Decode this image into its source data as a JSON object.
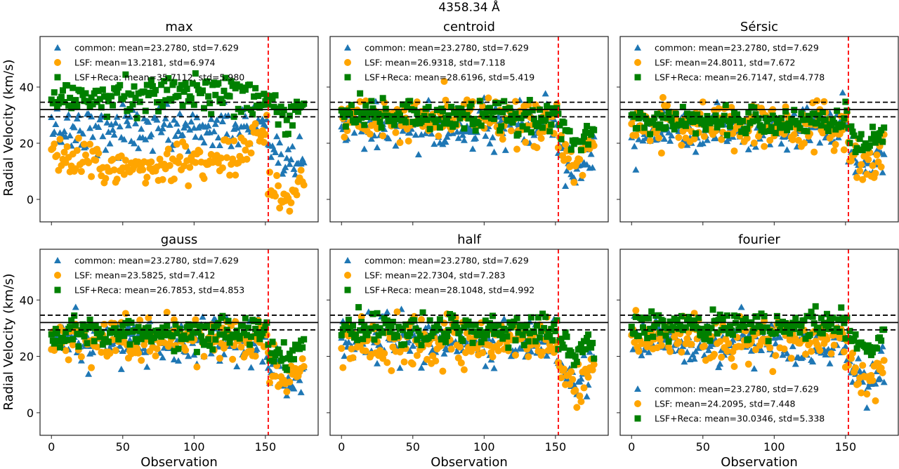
{
  "chart_data": {
    "type": "scatter",
    "suptitle": "4358.34 Å",
    "xlabel": "Observation",
    "ylabel": "Radial Velocity (km/s)",
    "xlim": [
      -8,
      187
    ],
    "ylim": [
      -8,
      58
    ],
    "xticks": [
      0,
      50,
      100,
      150
    ],
    "yticks": [
      0,
      20,
      40
    ],
    "grid": false,
    "reference_lines": {
      "solid_y": 32.0,
      "dashed_y": [
        29.4,
        34.6
      ],
      "vertical_dashed_x": 152,
      "colors": {
        "solid": "#000000",
        "dashed": "#000000",
        "vertical": "#ff0000"
      }
    },
    "n_observations": 178,
    "series_styles": [
      {
        "key": "common",
        "marker": "triangle",
        "color": "#1f77b4"
      },
      {
        "key": "lsf",
        "marker": "circle",
        "color": "#ffa500"
      },
      {
        "key": "lsf_reca",
        "marker": "square",
        "color": "#008000"
      }
    ],
    "panels": [
      {
        "title": "max",
        "legend_position": "upper-left",
        "series": [
          {
            "name": "common",
            "label": "common: mean=23.2780, std=7.629",
            "mean": 23.278,
            "std": 7.629
          },
          {
            "name": "LSF",
            "label": "LSF: mean=13.2181, std=6.974",
            "mean": 13.2181,
            "std": 6.974
          },
          {
            "name": "LSF+Reca",
            "label": "LSF+Reca: mean=35.7112, std=5.980",
            "mean": 35.7112,
            "std": 5.98
          }
        ]
      },
      {
        "title": "centroid",
        "legend_position": "upper-left",
        "series": [
          {
            "name": "common",
            "label": "common: mean=23.2780, std=7.629",
            "mean": 23.278,
            "std": 7.629
          },
          {
            "name": "LSF",
            "label": "LSF: mean=26.9318, std=7.118",
            "mean": 26.9318,
            "std": 7.118
          },
          {
            "name": "LSF+Reca",
            "label": "LSF+Reca: mean=28.6196, std=5.419",
            "mean": 28.6196,
            "std": 5.419
          }
        ]
      },
      {
        "title": "Sérsic",
        "legend_position": "upper-left",
        "series": [
          {
            "name": "common",
            "label": "common: mean=23.2780, std=7.629",
            "mean": 23.278,
            "std": 7.629
          },
          {
            "name": "LSF",
            "label": "LSF: mean=24.8011, std=7.672",
            "mean": 24.8011,
            "std": 7.672
          },
          {
            "name": "LSF+Reca",
            "label": "LSF+Reca: mean=26.7147, std=4.778",
            "mean": 26.7147,
            "std": 4.778
          }
        ]
      },
      {
        "title": "gauss",
        "legend_position": "upper-left",
        "series": [
          {
            "name": "common",
            "label": "common: mean=23.2780, std=7.629",
            "mean": 23.278,
            "std": 7.629
          },
          {
            "name": "LSF",
            "label": "LSF: mean=23.5825, std=7.412",
            "mean": 23.5825,
            "std": 7.412
          },
          {
            "name": "LSF+Reca",
            "label": "LSF+Reca: mean=26.7853, std=4.853",
            "mean": 26.7853,
            "std": 4.853
          }
        ]
      },
      {
        "title": "half",
        "legend_position": "upper-left",
        "series": [
          {
            "name": "common",
            "label": "common: mean=23.2780, std=7.629",
            "mean": 23.278,
            "std": 7.629
          },
          {
            "name": "LSF",
            "label": "LSF: mean=22.7304, std=7.283",
            "mean": 22.7304,
            "std": 7.283
          },
          {
            "name": "LSF+Reca",
            "label": "LSF+Reca: mean=28.1048, std=4.992",
            "mean": 28.1048,
            "std": 4.992
          }
        ]
      },
      {
        "title": "fourier",
        "legend_position": "lower-left",
        "series": [
          {
            "name": "common",
            "label": "common: mean=23.2780, std=7.629",
            "mean": 23.278,
            "std": 7.629
          },
          {
            "name": "LSF",
            "label": "LSF: mean=24.2095, std=7.448",
            "mean": 24.2095,
            "std": 7.448
          },
          {
            "name": "LSF+Reca",
            "label": "LSF+Reca: mean=30.0346, std=5.338",
            "mean": 30.0346,
            "std": 5.338
          }
        ]
      }
    ]
  }
}
